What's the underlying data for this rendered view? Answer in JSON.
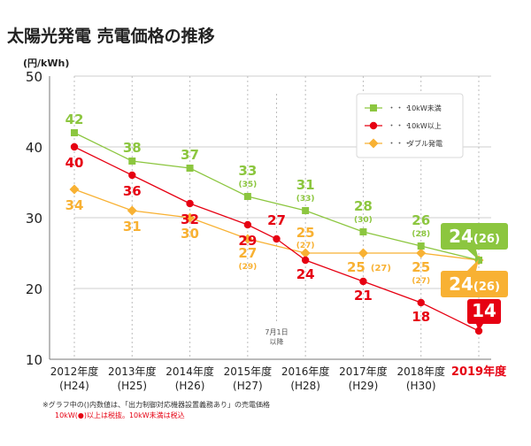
{
  "chart_data": {
    "type": "line",
    "title": "太陽光発電 売電価格の推移",
    "ylabel": "(円/kWh)",
    "ylim": [
      10,
      50
    ],
    "yticks": [
      10,
      20,
      30,
      40,
      50
    ],
    "grid": true,
    "legend_position": "top-right",
    "categories": [
      {
        "year": "2012年度",
        "era": "(H24)"
      },
      {
        "year": "2013年度",
        "era": "(H25)"
      },
      {
        "year": "2014年度",
        "era": "(H26)"
      },
      {
        "year": "2015年度",
        "era": "(H27)"
      },
      {
        "year": "2016年度",
        "era": "(H28)"
      },
      {
        "year": "2017年度",
        "era": "(H29)"
      },
      {
        "year": "2018年度",
        "era": "(H30)"
      },
      {
        "year": "2019年度",
        "era": ""
      }
    ],
    "series": [
      {
        "name": "10kW未満",
        "color": "#8cc63f",
        "marker": "square",
        "points": [
          {
            "x": 0,
            "y": 42,
            "label": "42",
            "sub": ""
          },
          {
            "x": 1,
            "y": 38,
            "label": "38",
            "sub": ""
          },
          {
            "x": 2,
            "y": 37,
            "label": "37",
            "sub": ""
          },
          {
            "x": 3,
            "y": 33,
            "label": "33",
            "sub": "(35)"
          },
          {
            "x": 4,
            "y": 31,
            "label": "31",
            "sub": "(33)"
          },
          {
            "x": 5,
            "y": 28,
            "label": "28",
            "sub": "(30)"
          },
          {
            "x": 6,
            "y": 26,
            "label": "26",
            "sub": "(28)"
          },
          {
            "x": 7,
            "y": 24,
            "label": "",
            "sub": ""
          }
        ]
      },
      {
        "name": "10kW以上",
        "color": "#e60012",
        "marker": "circle",
        "points": [
          {
            "x": 0,
            "y": 40,
            "label": "40",
            "sub": ""
          },
          {
            "x": 1,
            "y": 36,
            "label": "36",
            "sub": ""
          },
          {
            "x": 2,
            "y": 32,
            "label": "32",
            "sub": ""
          },
          {
            "x": 3,
            "y": 29,
            "label": "29",
            "sub": ""
          },
          {
            "x": 3.5,
            "y": 27,
            "label": "27",
            "sub": ""
          },
          {
            "x": 4,
            "y": 24,
            "label": "24",
            "sub": ""
          },
          {
            "x": 5,
            "y": 21,
            "label": "21",
            "sub": ""
          },
          {
            "x": 6,
            "y": 18,
            "label": "18",
            "sub": ""
          },
          {
            "x": 7,
            "y": 14,
            "label": "",
            "sub": ""
          }
        ]
      },
      {
        "name": "ダブル発電",
        "color": "#f8b133",
        "marker": "diamond",
        "points": [
          {
            "x": 0,
            "y": 34,
            "label": "34",
            "sub": ""
          },
          {
            "x": 1,
            "y": 31,
            "label": "31",
            "sub": ""
          },
          {
            "x": 2,
            "y": 30,
            "label": "30",
            "sub": ""
          },
          {
            "x": 3,
            "y": 27,
            "label": "27",
            "sub": "(29)"
          },
          {
            "x": 4,
            "y": 25,
            "label": "25",
            "sub": "(27)"
          },
          {
            "x": 5,
            "y": 25,
            "label": "25",
            "sub": "(27)"
          },
          {
            "x": 6,
            "y": 25,
            "label": "25",
            "sub": "(27)"
          },
          {
            "x": 7,
            "y": 24,
            "label": "",
            "sub": ""
          }
        ]
      }
    ],
    "callouts": [
      {
        "series": "10kW未満",
        "x": 7,
        "y": 24,
        "main": "24",
        "sub": "(26)"
      },
      {
        "series": "ダブル発電",
        "x": 7,
        "y": 24,
        "main": "24",
        "sub": "(26)"
      },
      {
        "series": "10kW以上",
        "x": 7,
        "y": 14,
        "main": "14",
        "sub": ""
      }
    ],
    "annotations": [
      {
        "x": 3.5,
        "lines": [
          "7月1日",
          "以降"
        ]
      }
    ],
    "highlight_category": "2019年度",
    "highlight_color": "#e60012",
    "footnotes": [
      "※グラフ中の()内数値は、「出力制御対応機器設置義務あり」の売電価格",
      "10kW(●)以上は税抜。10kW未満は税込"
    ]
  }
}
